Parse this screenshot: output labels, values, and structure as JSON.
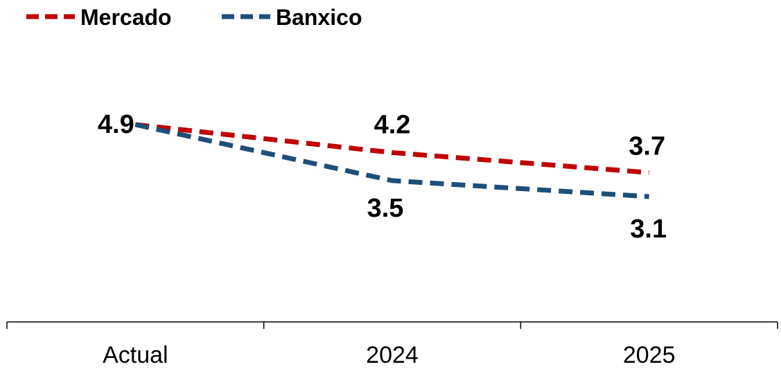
{
  "chart_data": {
    "type": "line",
    "categories": [
      "Actual",
      "2024",
      "2025"
    ],
    "series": [
      {
        "name": "Mercado",
        "values": [
          4.9,
          4.2,
          3.7
        ],
        "labels": [
          "4.9",
          "4.2",
          "3.7"
        ],
        "color": "#c00000"
      },
      {
        "name": "Banxico",
        "values": [
          4.9,
          3.5,
          3.1
        ],
        "labels": [
          "",
          "3.5",
          "3.1"
        ],
        "color": "#1f4e79"
      }
    ],
    "title": "",
    "xlabel": "",
    "ylabel": "",
    "legend": "top-left",
    "grid": false,
    "line_style": "dashed"
  }
}
